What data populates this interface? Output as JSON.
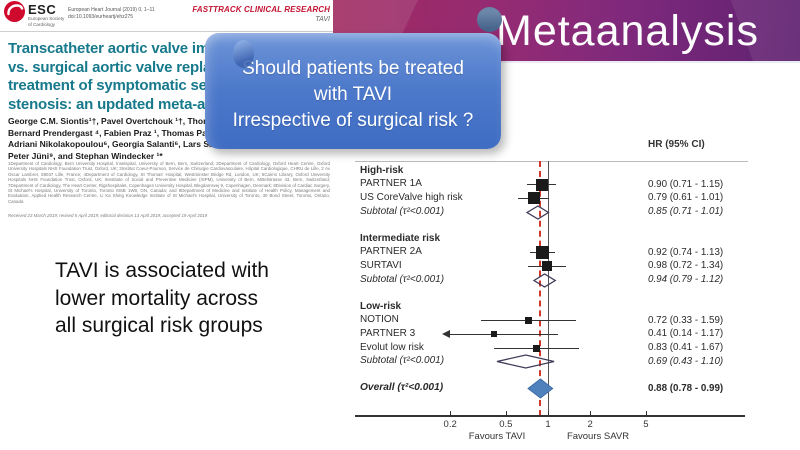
{
  "slide": {
    "banner_title": "Metaanalysis",
    "callout": {
      "line1": "Should patients be treated",
      "line2": "with TAVI",
      "line3": "Irrespective of surgical risk ?"
    },
    "message": {
      "line1": "TAVI is associated with",
      "line2": "lower mortality across",
      "line3": "all surgical risk groups"
    }
  },
  "journal": {
    "logo": {
      "esc": "ESC",
      "society_line1": "European Society",
      "society_line2": "of Cardiology"
    },
    "ref_line1": "European Heart Journal (2019) 0, 1–11",
    "ref_line2": "doi:10.1093/eurheartj/ehz275",
    "fasttrack_fast": "FAST",
    "fasttrack_rest": "TRACK CLINICAL RESEARCH",
    "fasttrack_tag": "TAVI",
    "title_lines": [
      "Transcatheter aortic valve implantation",
      "vs. surgical aortic valve replacement for",
      "treatment of symptomatic severe aortic",
      "stenosis: an updated meta-analysis"
    ],
    "author_lines": [
      "George C.M. Siontis¹†, Pavel Overtchouk ¹†, Thomas Pilgrim ¹,",
      "Bernard Prendergast ⁴, Fabien Praz ¹, Thomas Patterson ⁵,",
      "Adriani Nikolakopoulou⁶, Georgia Salanti⁶, Lars Søndergaard ⁷,",
      "Peter Jüni⁹, and Stephan Windecker ¹*"
    ],
    "affiliations": "1Department of Cardiology, Bern University Hospital, Inselspital, University of Bern, Bern, Switzerland; 2Department of Cardiology, Oxford Heart Centre, Oxford University Hospitals NHS Foundation Trust, Oxford, UK; 3Institut Coeur-Poumon, Service de Chirurgie Cardiovasculaire, Hôpital Cardiologique, CHRU de Lille, 2 Av Oscar Lambret, 59037 Lille, France; 4Department of Cardiology, St Thomas' Hospital, Westminster Bridge Rd, London, UK; 5Cairns Library, Oxford University Hospitals NHS Foundation Trust, Oxford, UK; 6Institute of Social and Preventive Medicine (ISPM), University of Bern, Mittelstrasse 43, Bern, Switzerland; 7Department of Cardiology, The Heart Center, Rigshospitalet, Copenhagen University Hospital, Blegdamsvej 9, Copenhagen, Denmark; 8Division of Cardiac Surgery, St Michael's Hospital, University of Toronto, Toronto MSB 1W8, ON, Canada; and 9Department of Medicine and Institute of Health Policy, Management and Evaluation, Applied Health Research Centre, Li Ka Shing Knowledge Institute of St Michael's Hospital, University of Toronto, 30 Bond Street, Toronto, Ontario, Canada",
    "received": "Received 23 March 2019; revised 5 April 2019; editorial decision 13 April 2019; accepted 19 April 2019"
  },
  "chart_data": {
    "type": "forest",
    "column_header": "HR (95% CI)",
    "axis": {
      "scale": "log",
      "ticks": [
        0.2,
        0.5,
        1,
        2,
        5
      ],
      "range_clip_low": 0.2,
      "label_left": "Favours TAVI",
      "label_right": "Favours SAVR",
      "reference_line": 1,
      "overall_line": 0.88
    },
    "colors": {
      "overall_fill": "#4f81bd",
      "overall_stroke": "#3f6da8",
      "subtotal_stroke": "#3f3b58",
      "overall_dash_line": "#d1382a",
      "marker": "#1a1a1a"
    },
    "rows": [
      {
        "type": "group",
        "label": "High-risk"
      },
      {
        "type": "study",
        "label": "PARTNER 1A",
        "hr": 0.9,
        "lo": 0.71,
        "hi": 1.15,
        "text": "0.90 (0.71 - 1.15)",
        "size": 12
      },
      {
        "type": "study",
        "label": "US CoreValve high risk",
        "hr": 0.79,
        "lo": 0.61,
        "hi": 1.01,
        "text": "0.79 (0.61 - 1.01)",
        "size": 12
      },
      {
        "type": "subtotal",
        "label": "Subtotal  (τ²<0.001)",
        "hr": 0.85,
        "lo": 0.71,
        "hi": 1.01,
        "text": "0.85 (0.71 - 1.01)"
      },
      {
        "type": "gap"
      },
      {
        "type": "group",
        "label": "Intermediate risk"
      },
      {
        "type": "study",
        "label": "PARTNER 2A",
        "hr": 0.92,
        "lo": 0.74,
        "hi": 1.13,
        "text": "0.92 (0.74 - 1.13)",
        "size": 13
      },
      {
        "type": "study",
        "label": "SURTAVI",
        "hr": 0.98,
        "lo": 0.72,
        "hi": 1.34,
        "text": "0.98 (0.72 - 1.34)",
        "size": 10
      },
      {
        "type": "subtotal",
        "label": "Subtotal  (τ²<0.001)",
        "hr": 0.94,
        "lo": 0.79,
        "hi": 1.12,
        "text": "0.94 (0.79 - 1.12)"
      },
      {
        "type": "gap"
      },
      {
        "type": "group",
        "label": "Low-risk"
      },
      {
        "type": "study",
        "label": "NOTION",
        "hr": 0.72,
        "lo": 0.33,
        "hi": 1.59,
        "text": "0.72 (0.33 - 1.59)",
        "size": 7
      },
      {
        "type": "study",
        "label": "PARTNER 3",
        "hr": 0.41,
        "lo": 0.14,
        "hi": 1.17,
        "text": "0.41 (0.14 - 1.17)",
        "size": 6
      },
      {
        "type": "study",
        "label": "Evolut low risk",
        "hr": 0.83,
        "lo": 0.41,
        "hi": 1.67,
        "text": "0.83 (0.41 - 1.67)",
        "size": 7
      },
      {
        "type": "subtotal",
        "label": "Subtotal  (τ²<0.001)",
        "hr": 0.69,
        "lo": 0.43,
        "hi": 1.1,
        "text": "0.69 (0.43 - 1.10)"
      },
      {
        "type": "gap"
      },
      {
        "type": "overall",
        "label": "Overall  (τ²<0.001)",
        "hr": 0.88,
        "lo": 0.78,
        "hi": 0.99,
        "text": "0.88 (0.78 - 0.99)"
      }
    ]
  }
}
